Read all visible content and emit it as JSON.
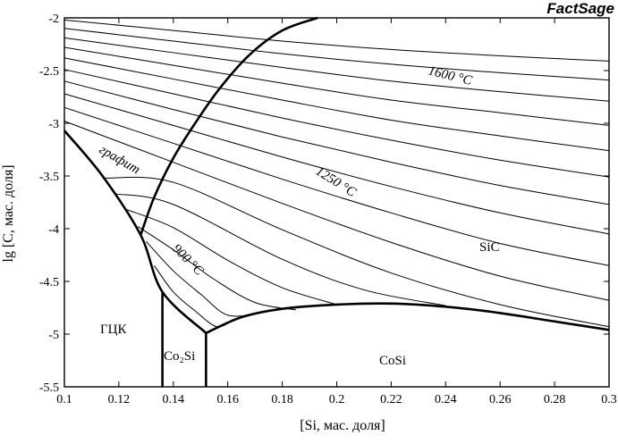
{
  "brand": "FactSage",
  "chart_data": {
    "type": "line",
    "title": "",
    "xlabel": "[Si,  мас. доля]",
    "ylabel": "lg [C,  мас. доля]",
    "xlim": [
      0.1,
      0.3
    ],
    "ylim": [
      -5.5,
      -2.0
    ],
    "x_ticks": [
      0.1,
      0.12,
      0.14,
      0.16,
      0.18,
      0.2,
      0.22,
      0.24,
      0.26,
      0.28,
      0.3
    ],
    "x_tick_labels": [
      "0.1",
      "0.12",
      "0.14",
      "0.16",
      "0.18",
      "0.2",
      "0.22",
      "0.24",
      "0.26",
      "0.28",
      "0.3"
    ],
    "y_ticks": [
      -2.0,
      -2.5,
      -3.0,
      -3.5,
      -4.0,
      -4.5,
      -5.0,
      -5.5
    ],
    "y_tick_labels": [
      "-2",
      "-2.5",
      "-3",
      "-3.5",
      "-4",
      "-4.5",
      "-5",
      "-5.5"
    ],
    "grid": false,
    "phase_boundaries": [
      {
        "x": [
          0.1,
          0.114,
          0.128,
          0.136,
          0.152
        ],
        "y": [
          -3.07,
          -3.5,
          -4.06,
          -4.6,
          -4.99
        ]
      },
      {
        "x": [
          0.128,
          0.133,
          0.14,
          0.148,
          0.157,
          0.168,
          0.18,
          0.193
        ],
        "y": [
          -4.06,
          -3.7,
          -3.33,
          -3.0,
          -2.67,
          -2.35,
          -2.12,
          -2.0
        ]
      },
      {
        "x": [
          0.152,
          0.165,
          0.18,
          0.2,
          0.22,
          0.24,
          0.26,
          0.28,
          0.3
        ],
        "y": [
          -4.99,
          -4.84,
          -4.76,
          -4.72,
          -4.71,
          -4.74,
          -4.8,
          -4.88,
          -4.96
        ]
      },
      {
        "x": [
          0.136,
          0.136
        ],
        "y": [
          -4.6,
          -5.5
        ]
      },
      {
        "x": [
          0.152,
          0.152
        ],
        "y": [
          -4.99,
          -5.5
        ]
      }
    ],
    "series": [
      {
        "x": [
          0.1,
          0.14,
          0.18,
          0.22,
          0.26,
          0.3
        ],
        "y": [
          -2.02,
          -2.12,
          -2.22,
          -2.3,
          -2.36,
          -2.41
        ]
      },
      {
        "x": [
          0.1,
          0.14,
          0.18,
          0.22,
          0.26,
          0.3
        ],
        "y": [
          -2.1,
          -2.22,
          -2.34,
          -2.44,
          -2.52,
          -2.59
        ]
      },
      {
        "x": [
          0.1,
          0.14,
          0.18,
          0.22,
          0.26,
          0.3
        ],
        "y": [
          -2.19,
          -2.33,
          -2.47,
          -2.6,
          -2.7,
          -2.79
        ]
      },
      {
        "x": [
          0.1,
          0.14,
          0.18,
          0.22,
          0.26,
          0.3
        ],
        "y": [
          -2.28,
          -2.45,
          -2.62,
          -2.78,
          -2.9,
          -3.02
        ]
      },
      {
        "x": [
          0.1,
          0.14,
          0.18,
          0.22,
          0.26,
          0.3
        ],
        "y": [
          -2.38,
          -2.58,
          -2.78,
          -2.97,
          -3.12,
          -3.26
        ]
      },
      {
        "x": [
          0.1,
          0.14,
          0.18,
          0.22,
          0.26,
          0.3
        ],
        "y": [
          -2.49,
          -2.72,
          -2.95,
          -3.16,
          -3.35,
          -3.51
        ]
      },
      {
        "x": [
          0.1,
          0.14,
          0.18,
          0.22,
          0.26,
          0.3
        ],
        "y": [
          -2.6,
          -2.87,
          -3.13,
          -3.37,
          -3.59,
          -3.77
        ]
      },
      {
        "x": [
          0.1,
          0.14,
          0.18,
          0.22,
          0.26,
          0.3
        ],
        "y": [
          -2.72,
          -3.02,
          -3.32,
          -3.6,
          -3.85,
          -4.05
        ]
      },
      {
        "x": [
          0.1,
          0.14,
          0.18,
          0.22,
          0.26,
          0.3
        ],
        "y": [
          -2.85,
          -3.19,
          -3.53,
          -3.85,
          -4.14,
          -4.35
        ]
      },
      {
        "x": [
          0.1,
          0.14,
          0.18,
          0.22,
          0.26,
          0.3
        ],
        "y": [
          -2.98,
          -3.37,
          -3.76,
          -4.13,
          -4.45,
          -4.68
        ]
      },
      {
        "x": [
          0.115,
          0.14,
          0.18,
          0.22,
          0.26,
          0.3
        ],
        "y": [
          -3.52,
          -3.56,
          -4.01,
          -4.42,
          -4.72,
          -4.93
        ]
      },
      {
        "x": [
          0.119,
          0.14,
          0.18,
          0.21,
          0.24
        ],
        "y": [
          -3.67,
          -3.77,
          -4.29,
          -4.58,
          -4.73
        ]
      },
      {
        "x": [
          0.123,
          0.14,
          0.16,
          0.18,
          0.2
        ],
        "y": [
          -3.82,
          -3.99,
          -4.3,
          -4.56,
          -4.72
        ]
      },
      {
        "x": [
          0.127,
          0.14,
          0.155,
          0.17,
          0.185
        ],
        "y": [
          -3.98,
          -4.2,
          -4.48,
          -4.7,
          -4.77
        ]
      },
      {
        "x": [
          0.13,
          0.14,
          0.15,
          0.16,
          0.172
        ],
        "y": [
          -4.12,
          -4.4,
          -4.62,
          -4.82,
          -4.8
        ]
      },
      {
        "x": [
          0.133,
          0.14,
          0.148,
          0.156,
          0.162
        ],
        "y": [
          -4.35,
          -4.6,
          -4.78,
          -4.93,
          -4.86
        ]
      }
    ],
    "labels": {
      "t1600": "1600 °C",
      "t1250": "1250 °C",
      "t900": "900 °C",
      "graphite": "графит",
      "sic": "SiC",
      "fcc": "ГЦК",
      "co2si": "Co₂Si",
      "cosi": "CoSi"
    }
  }
}
